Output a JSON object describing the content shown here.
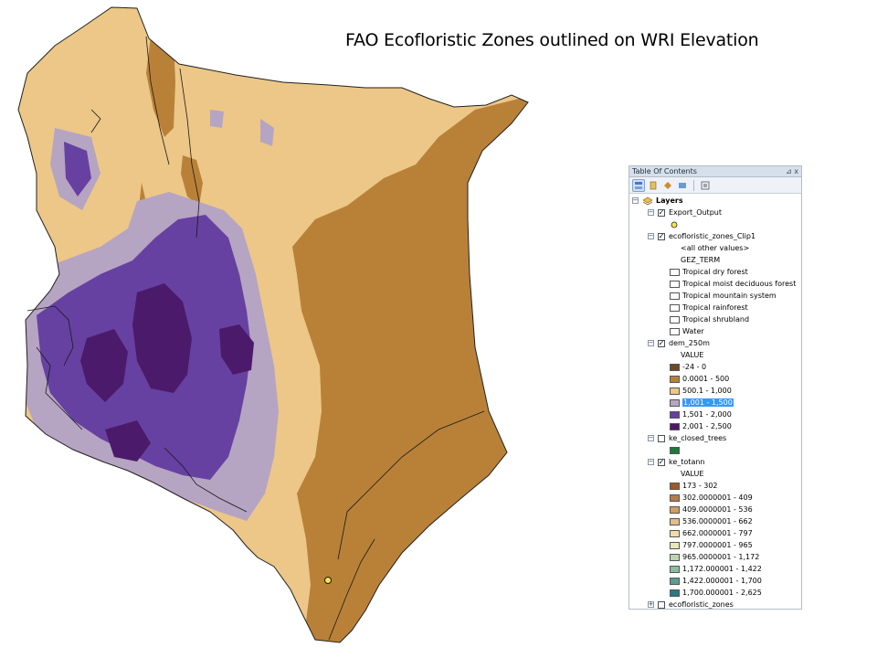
{
  "title": "FAO Ecofloristic Zones outlined on WRI Elevation",
  "colors": {
    "elev_0_500": "#b98138",
    "elev_500_1000": "#ecc787",
    "elev_1000_1500": "#b6a4c3",
    "elev_1500_2000": "#6641a1",
    "elev_2000_2500": "#4c1a6a",
    "highlight": "#3399ff"
  },
  "toc": {
    "title": "Table Of Contents",
    "pin": "⊿ x",
    "root": "Layers",
    "layers": [
      {
        "name": "Export_Output",
        "checked": true,
        "items": [
          {
            "type": "point",
            "color": "#f5e44b"
          }
        ]
      },
      {
        "name": "ecofloristic_zones_Clip1",
        "checked": true,
        "items": [
          {
            "type": "text",
            "label": "<all other values>"
          },
          {
            "type": "text",
            "label": "GEZ_TERM"
          },
          {
            "type": "swatch",
            "label": "Tropical dry forest",
            "color": "#ffffff"
          },
          {
            "type": "swatch",
            "label": "Tropical moist deciduous forest",
            "color": "#ffffff"
          },
          {
            "type": "swatch",
            "label": "Tropical mountain system",
            "color": "#ffffff"
          },
          {
            "type": "swatch",
            "label": "Tropical rainforest",
            "color": "#ffffff"
          },
          {
            "type": "swatch",
            "label": "Tropical shrubland",
            "color": "#ffffff"
          },
          {
            "type": "swatch",
            "label": "Water",
            "color": "#ffffff"
          }
        ]
      },
      {
        "name": "dem_250m",
        "checked": true,
        "items": [
          {
            "type": "text",
            "label": "VALUE"
          },
          {
            "type": "swatch",
            "label": "-24 - 0",
            "color": "#6e4a24"
          },
          {
            "type": "swatch",
            "label": "0.0001 - 500",
            "color": "#b98138"
          },
          {
            "type": "swatch",
            "label": "500.1 - 1,000",
            "color": "#ecc787"
          },
          {
            "type": "swatch",
            "label": "1,001 - 1,500",
            "color": "#b6a4c3",
            "selected": true
          },
          {
            "type": "swatch",
            "label": "1,501 - 2,000",
            "color": "#6641a1"
          },
          {
            "type": "swatch",
            "label": "2,001 - 2,500",
            "color": "#4c1a6a"
          }
        ]
      },
      {
        "name": "ke_closed_trees",
        "checked": false,
        "items": [
          {
            "type": "swatch",
            "label": "",
            "color": "#1e7a3c"
          }
        ]
      },
      {
        "name": "ke_totann",
        "checked": true,
        "items": [
          {
            "type": "text",
            "label": "VALUE"
          },
          {
            "type": "swatch",
            "label": "173 - 302",
            "color": "#9a5a2c"
          },
          {
            "type": "swatch",
            "label": "302.0000001 - 409",
            "color": "#b47c48"
          },
          {
            "type": "swatch",
            "label": "409.0000001 - 536",
            "color": "#cf9e66"
          },
          {
            "type": "swatch",
            "label": "536.0000001 - 662",
            "color": "#e2bd85"
          },
          {
            "type": "swatch",
            "label": "662.0000001 - 797",
            "color": "#f2dba8"
          },
          {
            "type": "swatch",
            "label": "797.0000001 - 965",
            "color": "#eae7b8"
          },
          {
            "type": "swatch",
            "label": "965.0000001 - 1,172",
            "color": "#bcd4b0"
          },
          {
            "type": "swatch",
            "label": "1,172.000001 - 1,422",
            "color": "#8cbca0"
          },
          {
            "type": "swatch",
            "label": "1,422.000001 - 1,700",
            "color": "#5a9e92"
          },
          {
            "type": "swatch",
            "label": "1,700.000001 - 2,625",
            "color": "#2a7a84"
          }
        ]
      },
      {
        "name": "ecofloristic_zones",
        "checked": false,
        "items": []
      }
    ]
  }
}
